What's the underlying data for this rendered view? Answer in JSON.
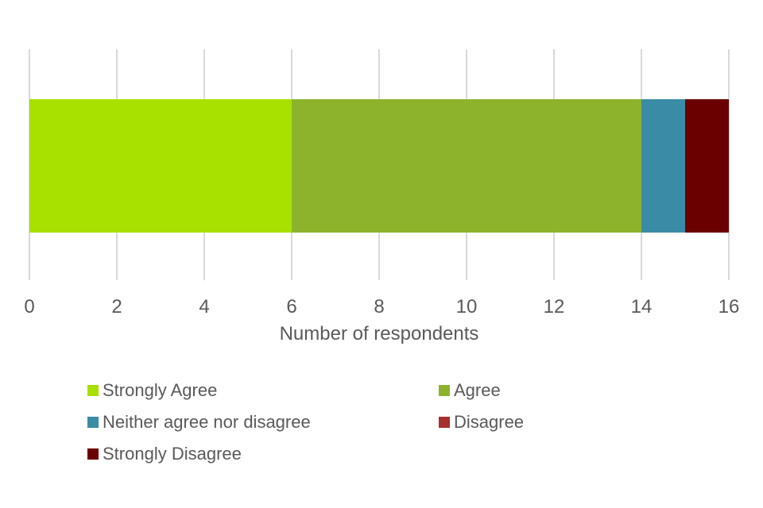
{
  "chart_data": {
    "type": "bar",
    "orientation": "horizontal-stacked",
    "title": "",
    "xlabel": "Number of respondents",
    "ylabel": "",
    "xlim": [
      0,
      16
    ],
    "xticks": [
      0,
      2,
      4,
      6,
      8,
      10,
      12,
      14,
      16
    ],
    "grid": "vertical-only",
    "legend_position": "bottom-two-columns",
    "categories": [
      "Strongly Agree",
      "Agree",
      "Neither agree nor disagree",
      "Disagree",
      "Strongly Disagree"
    ],
    "values": [
      6,
      8,
      1,
      0,
      1
    ],
    "colors": [
      "#a8e000",
      "#8db32d",
      "#3a8ba5",
      "#a63030",
      "#6b0000"
    ],
    "total_respondents": 16,
    "text_color": "#595959",
    "gridline_color": "#d9d9d9",
    "background_color": "#ffffff"
  }
}
